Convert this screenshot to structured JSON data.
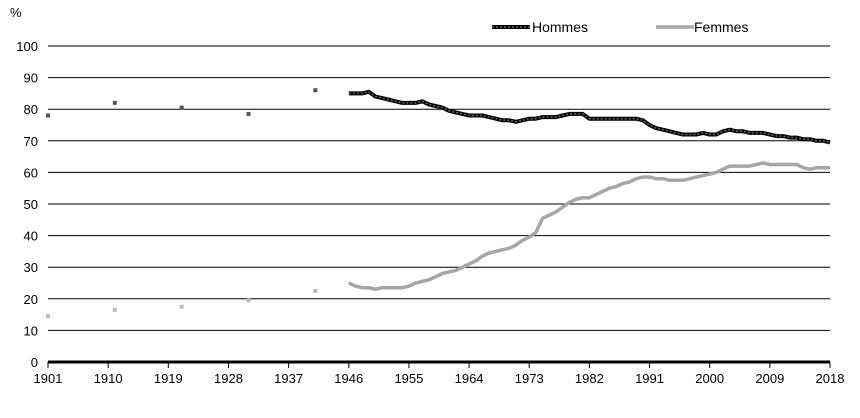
{
  "chart_data": {
    "type": "line",
    "title": "",
    "xlabel": "",
    "ylabel": "%",
    "xlim": [
      1901,
      2018
    ],
    "ylim": [
      0,
      100
    ],
    "y_ticks": [
      0,
      10,
      20,
      30,
      40,
      50,
      60,
      70,
      80,
      90,
      100
    ],
    "x_ticks": [
      1901,
      1910,
      1919,
      1928,
      1937,
      1946,
      1955,
      1964,
      1973,
      1982,
      1991,
      2000,
      2009,
      2018
    ],
    "grid": true,
    "legend_position": "top",
    "series": [
      {
        "name": "Hommes",
        "color": "#1a1a1a",
        "style": "dashed-thick",
        "census_points": [
          [
            1901,
            78
          ],
          [
            1911,
            82
          ],
          [
            1921,
            80.5
          ],
          [
            1931,
            78.5
          ],
          [
            1941,
            86
          ]
        ],
        "line_points": [
          [
            1946,
            85
          ],
          [
            1947,
            85
          ],
          [
            1948,
            85
          ],
          [
            1949,
            85.5
          ],
          [
            1950,
            84
          ],
          [
            1951,
            83.5
          ],
          [
            1952,
            83
          ],
          [
            1953,
            82.5
          ],
          [
            1954,
            82
          ],
          [
            1955,
            82
          ],
          [
            1956,
            82
          ],
          [
            1957,
            82.5
          ],
          [
            1958,
            81.5
          ],
          [
            1959,
            81
          ],
          [
            1960,
            80.5
          ],
          [
            1961,
            79.5
          ],
          [
            1962,
            79
          ],
          [
            1963,
            78.5
          ],
          [
            1964,
            78
          ],
          [
            1965,
            78
          ],
          [
            1966,
            78
          ],
          [
            1967,
            77.5
          ],
          [
            1968,
            77
          ],
          [
            1969,
            76.5
          ],
          [
            1970,
            76.5
          ],
          [
            1971,
            76
          ],
          [
            1972,
            76.5
          ],
          [
            1973,
            77
          ],
          [
            1974,
            77
          ],
          [
            1975,
            77.5
          ],
          [
            1976,
            77.5
          ],
          [
            1977,
            77.5
          ],
          [
            1978,
            78
          ],
          [
            1979,
            78.5
          ],
          [
            1980,
            78.5
          ],
          [
            1981,
            78.5
          ],
          [
            1982,
            77
          ],
          [
            1983,
            77
          ],
          [
            1984,
            77
          ],
          [
            1985,
            77
          ],
          [
            1986,
            77
          ],
          [
            1987,
            77
          ],
          [
            1988,
            77
          ],
          [
            1989,
            77
          ],
          [
            1990,
            76.5
          ],
          [
            1991,
            75
          ],
          [
            1992,
            74
          ],
          [
            1993,
            73.5
          ],
          [
            1994,
            73
          ],
          [
            1995,
            72.5
          ],
          [
            1996,
            72
          ],
          [
            1997,
            72
          ],
          [
            1998,
            72
          ],
          [
            1999,
            72.5
          ],
          [
            2000,
            72
          ],
          [
            2001,
            72
          ],
          [
            2002,
            73
          ],
          [
            2003,
            73.5
          ],
          [
            2004,
            73
          ],
          [
            2005,
            73
          ],
          [
            2006,
            72.5
          ],
          [
            2007,
            72.5
          ],
          [
            2008,
            72.5
          ],
          [
            2009,
            72
          ],
          [
            2010,
            71.5
          ],
          [
            2011,
            71.5
          ],
          [
            2012,
            71
          ],
          [
            2013,
            71
          ],
          [
            2014,
            70.5
          ],
          [
            2015,
            70.5
          ],
          [
            2016,
            70
          ],
          [
            2017,
            70
          ],
          [
            2018,
            69.5
          ]
        ]
      },
      {
        "name": "Femmes",
        "color": "#a6a6a6",
        "style": "solid",
        "census_points": [
          [
            1901,
            14.5
          ],
          [
            1911,
            16.5
          ],
          [
            1921,
            17.5
          ],
          [
            1931,
            19.5
          ],
          [
            1941,
            22.5
          ]
        ],
        "line_points": [
          [
            1946,
            25
          ],
          [
            1947,
            24
          ],
          [
            1948,
            23.5
          ],
          [
            1949,
            23.5
          ],
          [
            1950,
            23
          ],
          [
            1951,
            23.5
          ],
          [
            1952,
            23.5
          ],
          [
            1953,
            23.5
          ],
          [
            1954,
            23.5
          ],
          [
            1955,
            24
          ],
          [
            1956,
            25
          ],
          [
            1957,
            25.5
          ],
          [
            1958,
            26
          ],
          [
            1959,
            27
          ],
          [
            1960,
            28
          ],
          [
            1961,
            28.5
          ],
          [
            1962,
            29
          ],
          [
            1963,
            30
          ],
          [
            1964,
            31
          ],
          [
            1965,
            32
          ],
          [
            1966,
            33.5
          ],
          [
            1967,
            34.5
          ],
          [
            1968,
            35
          ],
          [
            1969,
            35.5
          ],
          [
            1970,
            36
          ],
          [
            1971,
            37
          ],
          [
            1972,
            38.5
          ],
          [
            1973,
            39.5
          ],
          [
            1974,
            41
          ],
          [
            1975,
            45.5
          ],
          [
            1976,
            46.5
          ],
          [
            1977,
            47.5
          ],
          [
            1978,
            49
          ],
          [
            1979,
            50.5
          ],
          [
            1980,
            51.5
          ],
          [
            1981,
            52
          ],
          [
            1982,
            52
          ],
          [
            1983,
            53
          ],
          [
            1984,
            54
          ],
          [
            1985,
            55
          ],
          [
            1986,
            55.5
          ],
          [
            1987,
            56.5
          ],
          [
            1988,
            57
          ],
          [
            1989,
            58
          ],
          [
            1990,
            58.5
          ],
          [
            1991,
            58.5
          ],
          [
            1992,
            58
          ],
          [
            1993,
            58
          ],
          [
            1994,
            57.5
          ],
          [
            1995,
            57.5
          ],
          [
            1996,
            57.5
          ],
          [
            1997,
            58
          ],
          [
            1998,
            58.5
          ],
          [
            1999,
            59
          ],
          [
            2000,
            59.5
          ],
          [
            2001,
            60
          ],
          [
            2002,
            61
          ],
          [
            2003,
            62
          ],
          [
            2004,
            62
          ],
          [
            2005,
            62
          ],
          [
            2006,
            62
          ],
          [
            2007,
            62.5
          ],
          [
            2008,
            63
          ],
          [
            2009,
            62.5
          ],
          [
            2010,
            62.5
          ],
          [
            2011,
            62.5
          ],
          [
            2012,
            62.5
          ],
          [
            2013,
            62.5
          ],
          [
            2014,
            61.5
          ],
          [
            2015,
            61
          ],
          [
            2016,
            61.5
          ],
          [
            2017,
            61.5
          ],
          [
            2018,
            61.5
          ]
        ]
      }
    ]
  }
}
